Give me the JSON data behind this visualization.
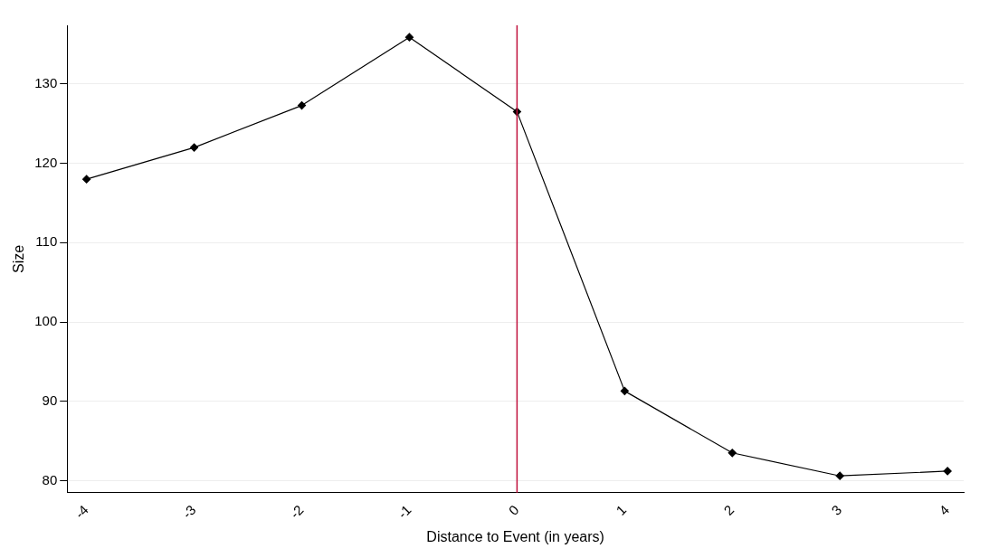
{
  "chart_data": {
    "type": "line",
    "xlabel": "Distance to Event (in years)",
    "ylabel": "Size",
    "x": [
      -4,
      -3,
      -2,
      -1,
      0,
      1,
      2,
      3,
      4
    ],
    "series": [
      {
        "color": "#000000",
        "values": [
          118,
          122,
          127.3,
          135.9,
          126.5,
          91.3,
          83.5,
          80.6,
          81.2
        ]
      }
    ],
    "xlim": [
      -4.18,
      4.15
    ],
    "xticks": [
      -4,
      -3,
      -2,
      -1,
      0,
      1,
      2,
      3,
      4
    ],
    "ylim": [
      78.5,
      137.4
    ],
    "yticks": [
      80,
      90,
      100,
      110,
      120,
      130
    ],
    "grid": "y",
    "marker": "diamond",
    "line_style": "solid",
    "legend": false,
    "ref_lines": [
      {
        "axis": "x",
        "value": 0,
        "color": "#c0103c"
      }
    ]
  }
}
